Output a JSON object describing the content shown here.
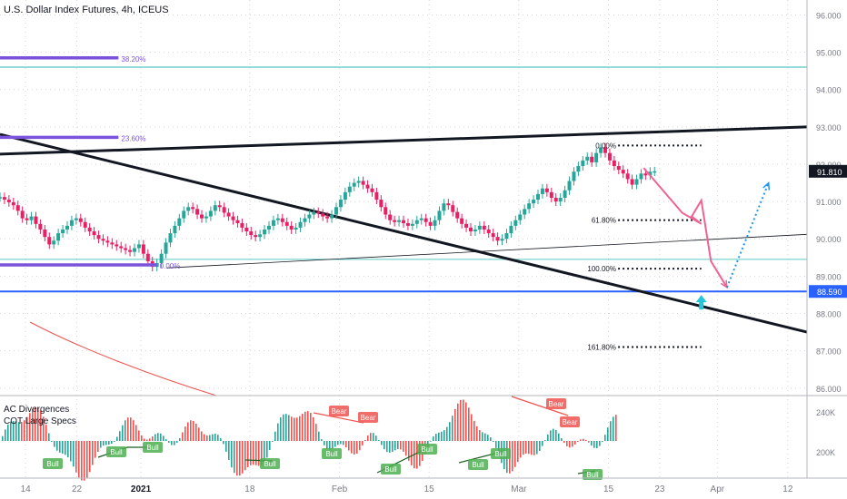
{
  "header": {
    "title": "U.S. Dollar Index Futures, 4h, ICEUS"
  },
  "chart_data": {
    "type": "candlestick",
    "title": "U.S. Dollar Index Futures, 4h, ICEUS",
    "price_axis": {
      "ylim": [
        85.8,
        96.4
      ],
      "ticks": [
        "96.000",
        "95.000",
        "94.000",
        "93.000",
        "92.000",
        "91.000",
        "90.000",
        "89.000",
        "88.000",
        "87.000",
        "86.000"
      ],
      "tick_values": [
        96,
        95,
        94,
        93,
        92,
        91,
        90,
        89,
        88,
        87,
        86
      ],
      "current_price": {
        "label": "91.810",
        "value": 91.81,
        "color": "#131722"
      },
      "level_tag": {
        "label": "88.590",
        "value": 88.59,
        "color": "#2962ff"
      }
    },
    "time_axis": {
      "ticks": [
        "14",
        "22",
        "2021",
        "18",
        "Feb",
        "15",
        "Mar",
        "15",
        "23",
        "Apr",
        "12"
      ],
      "tick_days": [
        -18,
        -10,
        0,
        17,
        31,
        45,
        59,
        73,
        81,
        90,
        101
      ],
      "xlim": [
        -22,
        104
      ]
    },
    "candles": [
      [
        -22.0,
        91.12
      ],
      [
        -21.3,
        91.05
      ],
      [
        -20.6,
        90.98
      ],
      [
        -19.9,
        90.9
      ],
      [
        -19.2,
        90.75
      ],
      [
        -18.5,
        90.55
      ],
      [
        -17.8,
        90.5
      ],
      [
        -17.1,
        90.6
      ],
      [
        -16.4,
        90.4
      ],
      [
        -15.7,
        90.25
      ],
      [
        -15.0,
        90.05
      ],
      [
        -14.3,
        89.85
      ],
      [
        -13.6,
        89.95
      ],
      [
        -12.9,
        90.15
      ],
      [
        -12.2,
        90.25
      ],
      [
        -11.5,
        90.35
      ],
      [
        -10.8,
        90.5
      ],
      [
        -10.1,
        90.55
      ],
      [
        -9.4,
        90.45
      ],
      [
        -8.7,
        90.3
      ],
      [
        -8.0,
        90.2
      ],
      [
        -7.3,
        90.1
      ],
      [
        -6.6,
        90.0
      ],
      [
        -5.9,
        89.95
      ],
      [
        -5.2,
        89.9
      ],
      [
        -4.5,
        89.85
      ],
      [
        -3.8,
        89.8
      ],
      [
        -3.1,
        89.75
      ],
      [
        -2.4,
        89.7
      ],
      [
        -1.7,
        89.65
      ],
      [
        -1.0,
        89.75
      ],
      [
        -0.3,
        89.85
      ],
      [
        0.4,
        89.6
      ],
      [
        1.1,
        89.4
      ],
      [
        1.8,
        89.25
      ],
      [
        2.5,
        89.35
      ],
      [
        3.2,
        89.6
      ],
      [
        3.9,
        89.9
      ],
      [
        4.6,
        90.15
      ],
      [
        5.3,
        90.35
      ],
      [
        6.0,
        90.55
      ],
      [
        6.7,
        90.75
      ],
      [
        7.4,
        90.85
      ],
      [
        8.1,
        90.8
      ],
      [
        8.8,
        90.65
      ],
      [
        9.5,
        90.55
      ],
      [
        10.2,
        90.6
      ],
      [
        10.9,
        90.75
      ],
      [
        11.6,
        90.9
      ],
      [
        12.3,
        90.85
      ],
      [
        13.0,
        90.7
      ],
      [
        13.7,
        90.6
      ],
      [
        14.4,
        90.5
      ],
      [
        15.1,
        90.42
      ],
      [
        15.8,
        90.3
      ],
      [
        16.5,
        90.2
      ],
      [
        17.2,
        90.1
      ],
      [
        17.9,
        90.05
      ],
      [
        18.6,
        90.12
      ],
      [
        19.3,
        90.25
      ],
      [
        20.0,
        90.35
      ],
      [
        20.7,
        90.5
      ],
      [
        21.4,
        90.55
      ],
      [
        22.1,
        90.45
      ],
      [
        22.8,
        90.35
      ],
      [
        23.5,
        90.25
      ],
      [
        24.2,
        90.3
      ],
      [
        24.9,
        90.45
      ],
      [
        25.6,
        90.55
      ],
      [
        26.3,
        90.65
      ],
      [
        27.0,
        90.72
      ],
      [
        27.7,
        90.68
      ],
      [
        28.4,
        90.6
      ],
      [
        29.1,
        90.55
      ],
      [
        29.8,
        90.65
      ],
      [
        30.5,
        90.85
      ],
      [
        31.2,
        91.05
      ],
      [
        31.9,
        91.25
      ],
      [
        32.6,
        91.4
      ],
      [
        33.3,
        91.5
      ],
      [
        34.0,
        91.55
      ],
      [
        34.7,
        91.45
      ],
      [
        35.4,
        91.35
      ],
      [
        36.1,
        91.25
      ],
      [
        36.8,
        91.05
      ],
      [
        37.5,
        90.85
      ],
      [
        38.2,
        90.65
      ],
      [
        38.9,
        90.5
      ],
      [
        39.6,
        90.45
      ],
      [
        40.3,
        90.5
      ],
      [
        41.0,
        90.42
      ],
      [
        41.7,
        90.35
      ],
      [
        42.4,
        90.4
      ],
      [
        43.1,
        90.5
      ],
      [
        43.8,
        90.55
      ],
      [
        44.5,
        90.45
      ],
      [
        45.2,
        90.35
      ],
      [
        45.9,
        90.5
      ],
      [
        46.6,
        90.75
      ],
      [
        47.3,
        90.95
      ],
      [
        48.0,
        90.9
      ],
      [
        48.7,
        90.72
      ],
      [
        49.4,
        90.55
      ],
      [
        50.1,
        90.4
      ],
      [
        50.8,
        90.3
      ],
      [
        51.5,
        90.2
      ],
      [
        52.2,
        90.25
      ],
      [
        52.9,
        90.35
      ],
      [
        53.6,
        90.25
      ],
      [
        54.3,
        90.15
      ],
      [
        55.0,
        90.05
      ],
      [
        55.7,
        89.95
      ],
      [
        56.4,
        90.0
      ],
      [
        57.1,
        90.15
      ],
      [
        57.8,
        90.35
      ],
      [
        58.5,
        90.5
      ],
      [
        59.2,
        90.65
      ],
      [
        59.9,
        90.8
      ],
      [
        60.6,
        90.95
      ],
      [
        61.3,
        91.05
      ],
      [
        62.0,
        91.2
      ],
      [
        62.7,
        91.35
      ],
      [
        63.4,
        91.25
      ],
      [
        64.1,
        91.1
      ],
      [
        64.8,
        91.0
      ],
      [
        65.5,
        91.1
      ],
      [
        66.2,
        91.3
      ],
      [
        66.9,
        91.55
      ],
      [
        67.6,
        91.8
      ],
      [
        68.3,
        91.95
      ],
      [
        69.0,
        92.1
      ],
      [
        69.7,
        92.2
      ],
      [
        70.4,
        92.05
      ],
      [
        71.1,
        92.3
      ],
      [
        71.8,
        92.45
      ],
      [
        72.5,
        92.3
      ],
      [
        73.2,
        92.1
      ],
      [
        73.9,
        91.95
      ],
      [
        74.6,
        91.85
      ],
      [
        75.3,
        91.75
      ],
      [
        76.0,
        91.6
      ],
      [
        76.7,
        91.45
      ],
      [
        77.4,
        91.6
      ],
      [
        78.1,
        91.75
      ],
      [
        78.8,
        91.7
      ],
      [
        79.5,
        91.8
      ],
      [
        80.2,
        91.81
      ]
    ],
    "fib_levels": [
      {
        "label": "38.20%",
        "value": 94.85,
        "color": "#7b52dc"
      },
      {
        "label": "23.60%",
        "value": 92.72,
        "color": "#7b52dc"
      },
      {
        "label": "0.00%",
        "value": 89.3,
        "color": "#7b52dc"
      },
      {
        "label": "0.00%",
        "value": 92.5,
        "color": "#131722"
      },
      {
        "label": "61.80%",
        "value": 90.5,
        "color": "#131722"
      },
      {
        "label": "100.00%",
        "value": 89.2,
        "color": "#131722"
      },
      {
        "label": "161.80%",
        "value": 87.1,
        "color": "#131722"
      }
    ],
    "horizontal_levels": [
      {
        "value": 94.6,
        "color": "#29b6b0"
      },
      {
        "value": 89.45,
        "color": "#5ec8c4"
      },
      {
        "value": 88.59,
        "color": "#2962ff"
      }
    ],
    "trendlines": [
      {
        "from": [
          -22,
          92.27
        ],
        "to": [
          104,
          93.0
        ],
        "color": "#131722",
        "width": 3
      },
      {
        "from": [
          -22,
          92.8
        ],
        "to": [
          104,
          87.5
        ],
        "color": "#131722",
        "width": 3
      },
      {
        "from": [
          4,
          89.22
        ],
        "to": [
          104,
          90.12
        ],
        "color": "#131722",
        "width": 0.8
      }
    ],
    "projections": [
      {
        "points": [
          [
            78.5,
            91.9
          ],
          [
            84.5,
            90.7
          ],
          [
            87.5,
            90.4
          ],
          [
            86.0,
            90.6
          ],
          [
            87.5,
            91.03
          ],
          [
            89.0,
            89.4
          ],
          [
            91.5,
            88.7
          ]
        ],
        "color": "#f06292",
        "style": "solid"
      },
      {
        "points": [
          [
            91.5,
            88.7
          ],
          [
            98,
            91.5
          ]
        ],
        "color": "#2196f3",
        "style": "dotted"
      }
    ],
    "arrow_up": {
      "x": 87.5,
      "value": 88.3,
      "color": "#26c6da"
    },
    "indicators": {
      "labels": [
        "AC Divergences",
        "COT Large Specs"
      ],
      "axis_ticks": [
        "240K",
        "200K"
      ],
      "markers": [
        "Bear",
        "Bear",
        "Bear",
        "Bear",
        "Bull",
        "Bull",
        "Bull",
        "Bull",
        "Bull",
        "Bull",
        "Bull",
        "Bull",
        "Bull",
        "Bull"
      ],
      "colors": {
        "up": "#26a69a",
        "down": "#ef5350",
        "bull": "#4caf50",
        "bear": "#ef5350"
      }
    }
  }
}
